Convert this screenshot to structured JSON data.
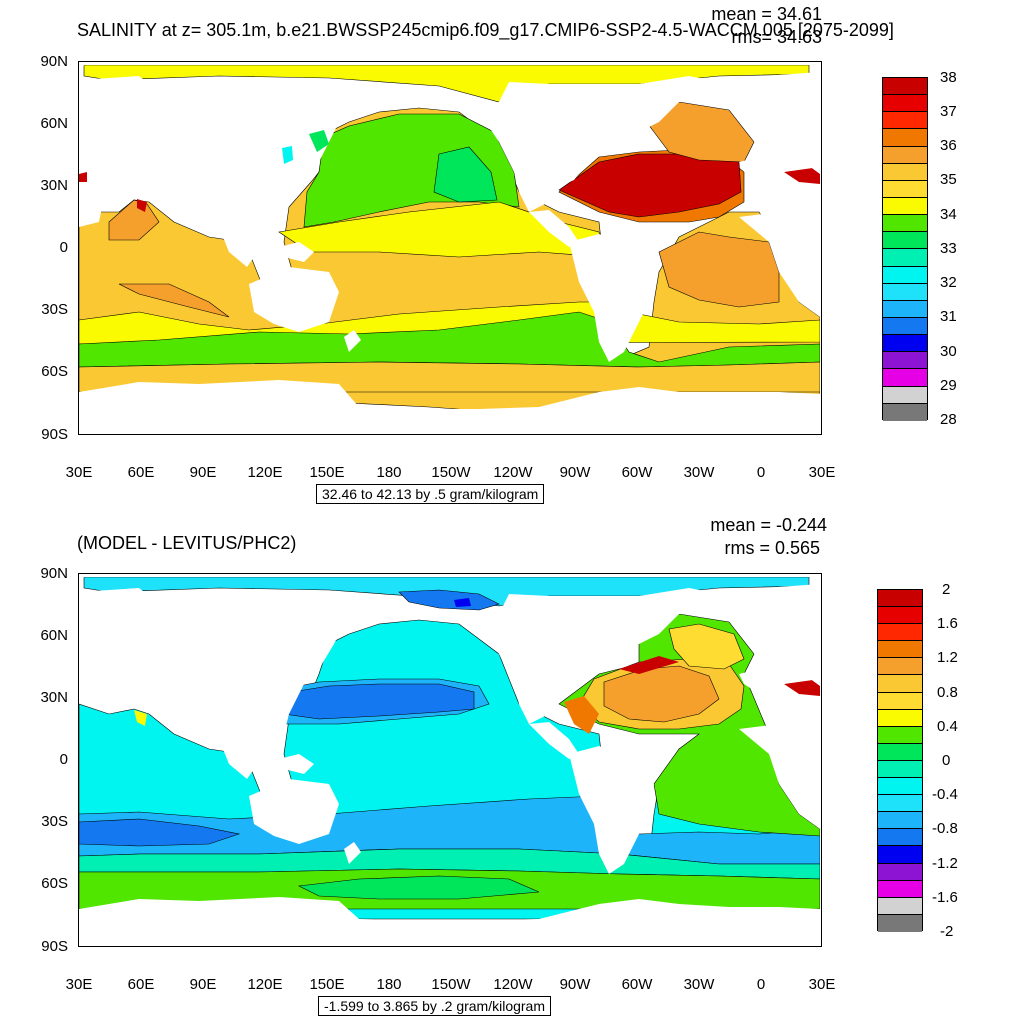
{
  "panels": [
    {
      "title": "SALINITY at z= 305.1m, b.e21.BWSSP245cmip6.f09_g17.CMIP6-SSP2-4.5-WACCM.005 [2075-2099]",
      "mean_label": "mean = 34.61",
      "rms_label": "rms= 34.63",
      "range_label": "32.46 to 42.13 by .5 gram/kilogram",
      "y_ticks": [
        "90N",
        "60N",
        "30N",
        "0",
        "30S",
        "60S",
        "90S"
      ],
      "x_ticks": [
        "30E",
        "60E",
        "90E",
        "120E",
        "150E",
        "180",
        "150W",
        "120W",
        "90W",
        "60W",
        "30W",
        "0",
        "30E"
      ],
      "colorbar": {
        "labels": [
          "38",
          "37",
          "36",
          "35",
          "34",
          "33",
          "32",
          "31",
          "30",
          "29",
          "28"
        ],
        "colors": [
          "#c80000",
          "#e60000",
          "#ff2800",
          "#f07800",
          "#f5a02d",
          "#fac832",
          "#ffdc32",
          "#fafa00",
          "#50e600",
          "#00e65a",
          "#00f0b4",
          "#00f5f0",
          "#1ee1fa",
          "#1eb4fa",
          "#1478f0",
          "#0000f0",
          "#8c14d2",
          "#e600e6",
          "#d2d2d2",
          "#787878"
        ]
      }
    },
    {
      "title": "(MODEL - LEVITUS/PHC2)",
      "mean_label": "mean = -0.244",
      "rms_label": "rms = 0.565",
      "range_label": "-1.599 to 3.865 by .2 gram/kilogram",
      "y_ticks": [
        "90N",
        "60N",
        "30N",
        "0",
        "30S",
        "60S",
        "90S"
      ],
      "x_ticks": [
        "30E",
        "60E",
        "90E",
        "120E",
        "150E",
        "180",
        "150W",
        "120W",
        "90W",
        "60W",
        "30W",
        "0",
        "30E"
      ],
      "colorbar": {
        "labels": [
          "2",
          "1.6",
          "1.2",
          "0.8",
          "0.4",
          "0",
          "-0.4",
          "-0.8",
          "-1.2",
          "-1.6",
          "-2"
        ],
        "colors": [
          "#c80000",
          "#e60000",
          "#ff2800",
          "#f07800",
          "#f5a02d",
          "#fac832",
          "#ffdc32",
          "#fafa00",
          "#50e600",
          "#00e65a",
          "#00f0b4",
          "#00f5f0",
          "#1ee1fa",
          "#1eb4fa",
          "#1478f0",
          "#0000f0",
          "#8c14d2",
          "#e600e6",
          "#d2d2d2",
          "#787878"
        ]
      }
    }
  ]
}
